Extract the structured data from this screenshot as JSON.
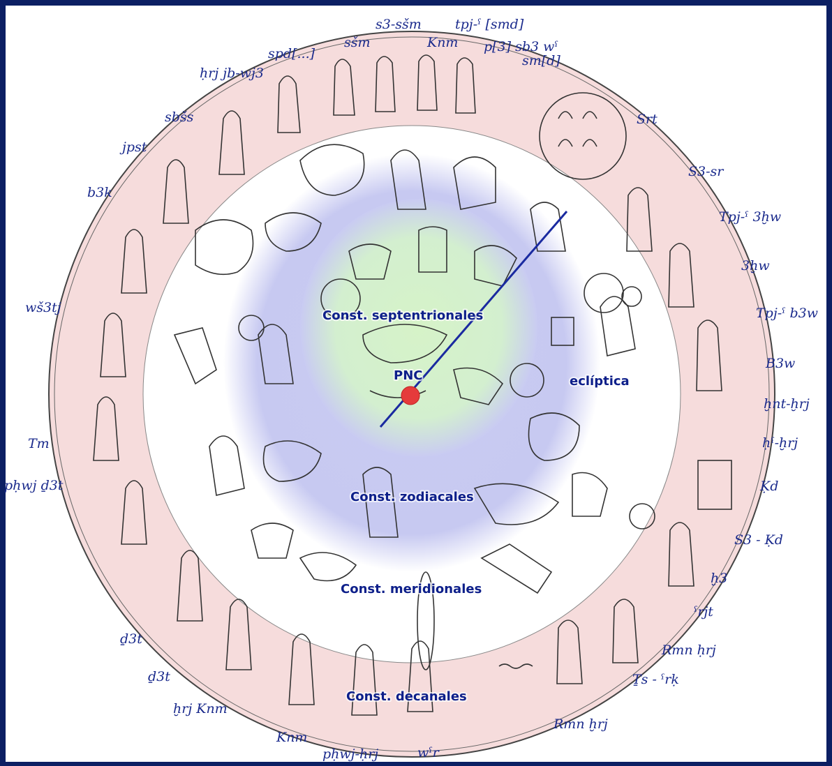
{
  "colors": {
    "background": "#0c1f63",
    "frame": "#0c1f63",
    "outer_ring": "#f4d7d7",
    "white_band": "#ffffff",
    "zodiac_ring": "#c9cbf2",
    "center_disc": "#d8f2cf",
    "label_text": "#1a2a8c",
    "ecliptic_line": "#1a2aa0",
    "pole_marker": "#e53b3b"
  },
  "regions": {
    "septentrionales": "Const. septentrionales",
    "zodiacales": "Const. zodiacales",
    "meridionales": "Const. meridionales",
    "decanales": "Const. decanales",
    "ecliptica": "eclíptica",
    "pole": "PNC"
  },
  "decans": [
    {
      "id": "s3-ssm",
      "text": "s3-sšm"
    },
    {
      "id": "tpj-smd",
      "text": "tpj-ˁ [smd]"
    },
    {
      "id": "ssm",
      "text": "sšm"
    },
    {
      "id": "knm-top",
      "text": "Knm"
    },
    {
      "id": "p3-sb3",
      "text": "p[3] sb3 wˁ"
    },
    {
      "id": "smd",
      "text": "sm[d]"
    },
    {
      "id": "spd",
      "text": "spd[...]"
    },
    {
      "id": "hrj-jb-wj3",
      "text": "ḥrj jb-wj3"
    },
    {
      "id": "sbss",
      "text": "sbšs"
    },
    {
      "id": "srt",
      "text": "Srt"
    },
    {
      "id": "jpst",
      "text": "jpst"
    },
    {
      "id": "s3-sr",
      "text": "S3-sr"
    },
    {
      "id": "b3k",
      "text": "b3k"
    },
    {
      "id": "tpj-3hw",
      "text": "Tpj-ˁ 3ḫw"
    },
    {
      "id": "3hw",
      "text": "3ḫw"
    },
    {
      "id": "ws3tj",
      "text": "wš3tj"
    },
    {
      "id": "tpj-b3w",
      "text": "Tpj-ˁ b3w"
    },
    {
      "id": "b3w",
      "text": "B3w"
    },
    {
      "id": "hnt-hrj",
      "text": "ḫnt-ḫrj"
    },
    {
      "id": "tm",
      "text": "Tm"
    },
    {
      "id": "h-hrj",
      "text": "ḥˁ-ḫrj"
    },
    {
      "id": "phwj-d3t",
      "text": "pḥwj ḏ3t"
    },
    {
      "id": "kd",
      "text": "Ḳd"
    },
    {
      "id": "s3-kd",
      "text": "S3 - Ḳd"
    },
    {
      "id": "h3",
      "text": "ḫ3"
    },
    {
      "id": "rjt",
      "text": "ˁrjt"
    },
    {
      "id": "d3t-1",
      "text": "ḏ3t"
    },
    {
      "id": "rmn-hrj-1",
      "text": "Rmn ḥrj"
    },
    {
      "id": "d3t-2",
      "text": "ḏ3t"
    },
    {
      "id": "ts-rk",
      "text": "Ṯs - ˁrḳ"
    },
    {
      "id": "hrj-knm",
      "text": "ḫrj Knm"
    },
    {
      "id": "rmn-hrj-2",
      "text": "Rmn ḫrj"
    },
    {
      "id": "knm-bottom",
      "text": "Knm"
    },
    {
      "id": "phwj-hrj",
      "text": "pḥwj-ḥrj"
    },
    {
      "id": "wr",
      "text": "wˁr"
    }
  ]
}
